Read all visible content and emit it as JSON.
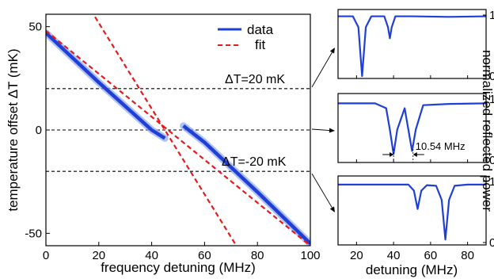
{
  "chart_data": [
    {
      "type": "line",
      "xlabel": "frequency detuning (MHz)",
      "ylabel": "temperature offset ΔT (mK)",
      "xlim": [
        0,
        100
      ],
      "ylim": [
        -56,
        56
      ],
      "xticks": [
        0,
        20,
        40,
        60,
        80,
        100
      ],
      "yticks": [
        50,
        0,
        -50
      ],
      "grid": false,
      "legend": "top-right",
      "series": [
        {
          "name": "data",
          "color": "#1f3fd6",
          "style": "solid",
          "segments": [
            {
              "x": [
                0,
                20,
                40,
                45
              ],
              "y": [
                47,
                23,
                0,
                -4
              ]
            },
            {
              "x": [
                52,
                60,
                80,
                100
              ],
              "y": [
                2,
                -6,
                -30,
                -55
              ]
            }
          ]
        },
        {
          "name": "fit",
          "color": "#e41a1c",
          "style": "dashed",
          "lines": [
            {
              "x": [
                0,
                100
              ],
              "y": [
                48,
                -56
              ]
            },
            {
              "x": [
                17,
                72
              ],
              "y": [
                58,
                -56
              ]
            }
          ]
        }
      ],
      "hlines": [
        20,
        0,
        -20
      ],
      "annotations": [
        "ΔT=20 mK",
        "ΔT=-20 mK"
      ]
    },
    {
      "type": "line",
      "panel": "top",
      "xlim": [
        10,
        90
      ],
      "ylim": [
        0,
        1
      ],
      "yticks": [
        0,
        1
      ],
      "series": [
        {
          "name": "",
          "color": "#1f3fd6",
          "x": [
            10,
            18,
            21,
            23,
            25,
            28,
            35,
            37,
            38,
            39,
            41,
            50,
            70,
            90
          ],
          "y": [
            0.98,
            0.98,
            0.8,
            0.0,
            0.8,
            0.98,
            0.98,
            0.8,
            0.62,
            0.8,
            0.98,
            0.98,
            0.97,
            0.98
          ]
        }
      ]
    },
    {
      "type": "line",
      "panel": "middle",
      "xlim": [
        10,
        90
      ],
      "ylim": [
        0,
        1
      ],
      "yticks": [
        0,
        1
      ],
      "series": [
        {
          "name": "",
          "color": "#1f3fd6",
          "x": [
            10,
            30,
            36,
            38,
            40,
            42,
            46,
            48,
            50,
            52,
            56,
            70,
            90
          ],
          "y": [
            0.93,
            0.93,
            0.85,
            0.5,
            0.1,
            0.5,
            0.85,
            0.5,
            0.15,
            0.5,
            0.9,
            0.92,
            0.93
          ]
        }
      ],
      "annotation": "10.54 MHz"
    },
    {
      "type": "line",
      "panel": "bottom",
      "xlabel": "detuning (MHz)",
      "xlim": [
        10,
        90
      ],
      "xticks": [
        20,
        40,
        60,
        80
      ],
      "ylim": [
        0,
        1
      ],
      "yticks": [
        0,
        1
      ],
      "series": [
        {
          "name": "",
          "color": "#1f3fd6",
          "x": [
            10,
            48,
            51,
            53,
            55,
            58,
            63,
            66,
            68,
            70,
            73,
            80,
            90
          ],
          "y": [
            0.95,
            0.95,
            0.85,
            0.55,
            0.85,
            0.94,
            0.93,
            0.7,
            0.05,
            0.7,
            0.93,
            0.95,
            0.95
          ]
        }
      ]
    }
  ],
  "right_ylabel": "normalized reflected power"
}
